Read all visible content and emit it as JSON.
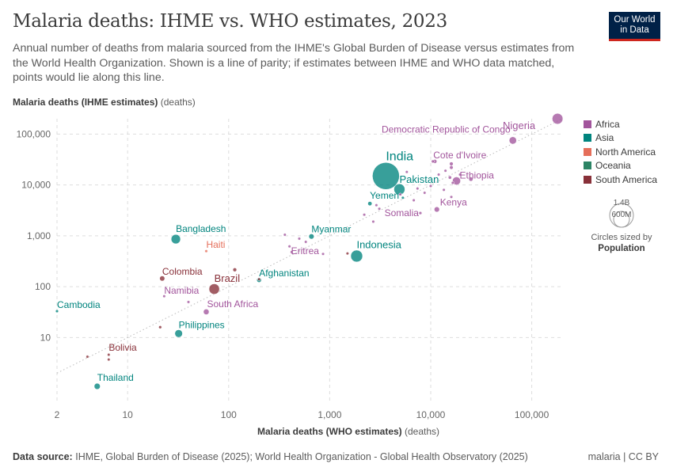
{
  "header": {
    "title": "Malaria deaths: IHME vs. WHO estimates, 2023",
    "subtitle": "Annual number of deaths from malaria sourced from the IHME's Global Burden of Disease versus estimates from the World Health Organization. Shown is a line of parity; if estimates between IHME and WHO data matched, points would lie along this line.",
    "logo_line1": "Our World",
    "logo_line2": "in Data"
  },
  "axes": {
    "y_label_bold": "Malaria deaths (IHME estimates)",
    "y_label_unit": "(deaths)",
    "x_label_bold": "Malaria deaths (WHO estimates)",
    "x_label_unit": "(deaths)"
  },
  "footer": {
    "source_label": "Data source:",
    "source_text": "IHME, Global Burden of Disease (2025); World Health Organization - Global Health Observatory (2025)",
    "license": "malaria | CC BY"
  },
  "size_legend": {
    "large_label": "1.4B",
    "small_label": "600M",
    "note": "Circles sized by",
    "note_bold": "Population"
  },
  "colors": {
    "Africa": "#a2559c",
    "Asia": "#00847e",
    "North America": "#e56e5a",
    "Oceania": "#2c8465",
    "South America": "#883039"
  },
  "chart_data": {
    "type": "scatter",
    "x_scale": "log",
    "y_scale": "log",
    "xlim": [
      2,
      200000
    ],
    "ylim": [
      0.5,
      200000
    ],
    "x_ticks": [
      2,
      10,
      100,
      1000,
      10000,
      100000
    ],
    "x_tick_labels": [
      "2",
      "10",
      "100",
      "1,000",
      "10,000",
      "100,000"
    ],
    "y_ticks": [
      10,
      100,
      1000,
      10000,
      100000
    ],
    "y_tick_labels": [
      "10",
      "100",
      "1,000",
      "10,000",
      "100,000"
    ],
    "grid": true,
    "parity_line": true,
    "legend_position": "right",
    "legend": [
      "Africa",
      "Asia",
      "North America",
      "Oceania",
      "South America"
    ],
    "points": [
      {
        "label": "Nigeria",
        "region": "Africa",
        "x": 180000,
        "y": 200000,
        "pop": 227
      },
      {
        "label": "Democratic Republic of Congo",
        "region": "Africa",
        "x": 65000,
        "y": 75000,
        "pop": 105
      },
      {
        "label": "Cote d'Ivoire",
        "region": "Africa",
        "x": 11000,
        "y": 29000,
        "pop": 30
      },
      {
        "label": "Ethiopia",
        "region": "Africa",
        "x": 18000,
        "y": 12000,
        "pop": 128
      },
      {
        "label": "Kenya",
        "region": "Africa",
        "x": 11500,
        "y": 3300,
        "pop": 55
      },
      {
        "label": "Somalia",
        "region": "Africa",
        "x": 7900,
        "y": 2800,
        "pop": 18
      },
      {
        "label": "Eritrea",
        "region": "Africa",
        "x": 400,
        "y": 620,
        "pop": 3.7
      },
      {
        "label": "Namibia",
        "region": "Africa",
        "x": 23,
        "y": 65,
        "pop": 3
      },
      {
        "label": "South Africa",
        "region": "Africa",
        "x": 60,
        "y": 32,
        "pop": 63
      },
      {
        "label": "",
        "region": "Africa",
        "x": 25000,
        "y": 13000,
        "pop": 34
      },
      {
        "label": "",
        "region": "Africa",
        "x": 16000,
        "y": 26000,
        "pop": 27
      },
      {
        "label": "",
        "region": "Africa",
        "x": 16000,
        "y": 22000,
        "pop": 25
      },
      {
        "label": "",
        "region": "Africa",
        "x": 15500,
        "y": 14000,
        "pop": 20
      },
      {
        "label": "",
        "region": "Africa",
        "x": 16500,
        "y": 11000,
        "pop": 14
      },
      {
        "label": "",
        "region": "Africa",
        "x": 14000,
        "y": 19000,
        "pop": 14
      },
      {
        "label": "",
        "region": "Africa",
        "x": 12000,
        "y": 16000,
        "pop": 14
      },
      {
        "label": "",
        "region": "Africa",
        "x": 19500,
        "y": 16000,
        "pop": 16
      },
      {
        "label": "",
        "region": "Africa",
        "x": 10500,
        "y": 29000,
        "pop": 18
      },
      {
        "label": "",
        "region": "Africa",
        "x": 10000,
        "y": 9500,
        "pop": 6
      },
      {
        "label": "",
        "region": "Africa",
        "x": 8700,
        "y": 7000,
        "pop": 6
      },
      {
        "label": "",
        "region": "Africa",
        "x": 13500,
        "y": 8000,
        "pop": 8
      },
      {
        "label": "",
        "region": "Africa",
        "x": 16000,
        "y": 5800,
        "pop": 9
      },
      {
        "label": "",
        "region": "Africa",
        "x": 5800,
        "y": 18000,
        "pop": 5
      },
      {
        "label": "",
        "region": "Africa",
        "x": 6800,
        "y": 5000,
        "pop": 4
      },
      {
        "label": "",
        "region": "Africa",
        "x": 7400,
        "y": 8500,
        "pop": 5
      },
      {
        "label": "",
        "region": "Africa",
        "x": 5000,
        "y": 6500,
        "pop": 4
      },
      {
        "label": "",
        "region": "Africa",
        "x": 2900,
        "y": 4000,
        "pop": 4
      },
      {
        "label": "",
        "region": "Africa",
        "x": 3100,
        "y": 3400,
        "pop": 3
      },
      {
        "label": "",
        "region": "Africa",
        "x": 2200,
        "y": 2600,
        "pop": 3
      },
      {
        "label": "",
        "region": "Africa",
        "x": 2700,
        "y": 1900,
        "pop": 3
      },
      {
        "label": "",
        "region": "Africa",
        "x": 360,
        "y": 1050,
        "pop": 3
      },
      {
        "label": "",
        "region": "Africa",
        "x": 500,
        "y": 880,
        "pop": 3
      },
      {
        "label": "",
        "region": "Africa",
        "x": 580,
        "y": 760,
        "pop": 3
      },
      {
        "label": "",
        "region": "Africa",
        "x": 420,
        "y": 480,
        "pop": 2
      },
      {
        "label": "",
        "region": "Africa",
        "x": 860,
        "y": 440,
        "pop": 2
      },
      {
        "label": "",
        "region": "Africa",
        "x": 40,
        "y": 50,
        "pop": 2
      },
      {
        "label": "India",
        "region": "Asia",
        "x": 3600,
        "y": 15000,
        "pop": 1430
      },
      {
        "label": "Pakistan",
        "region": "Asia",
        "x": 4900,
        "y": 8200,
        "pop": 240
      },
      {
        "label": "Yemen",
        "region": "Asia",
        "x": 2500,
        "y": 4300,
        "pop": 34
      },
      {
        "label": "Myanmar",
        "region": "Asia",
        "x": 660,
        "y": 970,
        "pop": 54
      },
      {
        "label": "Bangladesh",
        "region": "Asia",
        "x": 30,
        "y": 860,
        "pop": 173
      },
      {
        "label": "Indonesia",
        "region": "Asia",
        "x": 1850,
        "y": 400,
        "pop": 278
      },
      {
        "label": "Afghanistan",
        "region": "Asia",
        "x": 200,
        "y": 135,
        "pop": 42
      },
      {
        "label": "Philippines",
        "region": "Asia",
        "x": 32,
        "y": 12,
        "pop": 115
      },
      {
        "label": "Cambodia",
        "region": "Asia",
        "x": 2,
        "y": 33,
        "pop": 17
      },
      {
        "label": "Thailand",
        "region": "Asia",
        "x": 5,
        "y": 1.1,
        "pop": 72
      },
      {
        "label": "",
        "region": "Asia",
        "x": 5300,
        "y": 5600,
        "pop": 9
      },
      {
        "label": "Haiti",
        "region": "North America",
        "x": 60,
        "y": 500,
        "pop": 12
      },
      {
        "label": "Colombia",
        "region": "South America",
        "x": 22,
        "y": 145,
        "pop": 52
      },
      {
        "label": "Brazil",
        "region": "South America",
        "x": 72,
        "y": 90,
        "pop": 216
      },
      {
        "label": "Bolivia",
        "region": "South America",
        "x": 6.5,
        "y": 4.6,
        "pop": 12
      },
      {
        "label": "",
        "region": "South America",
        "x": 115,
        "y": 215,
        "pop": 28
      },
      {
        "label": "",
        "region": "South America",
        "x": 21,
        "y": 16,
        "pop": 18
      },
      {
        "label": "",
        "region": "South America",
        "x": 6.5,
        "y": 3.7,
        "pop": 7
      },
      {
        "label": "",
        "region": "South America",
        "x": 4,
        "y": 4.2,
        "pop": 7
      },
      {
        "label": "",
        "region": "South America",
        "x": 1500,
        "y": 450,
        "pop": 1
      },
      {
        "label": "",
        "region": "South America",
        "x": 200,
        "y": 140,
        "pop": 1
      }
    ]
  }
}
